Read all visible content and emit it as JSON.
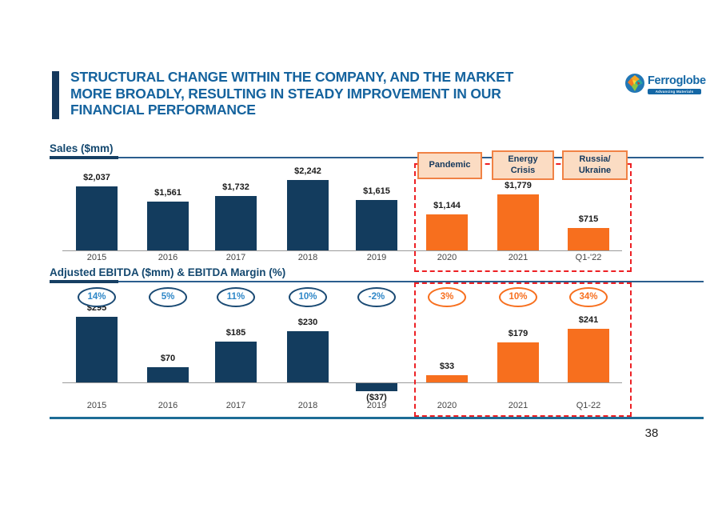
{
  "slide": {
    "title_lines": [
      "STRUCTURAL CHANGE WITHIN THE COMPANY, AND THE MARKET",
      "MORE BROADLY, RESULTING IN STEADY IMPROVEMENT IN OUR",
      "FINANCIAL PERFORMANCE"
    ],
    "page_number": "38"
  },
  "logo": {
    "name": "Ferroglobe",
    "tagline": "Advancing Materials Innovation"
  },
  "callouts": {
    "items": [
      "Pandemic",
      "Energy\nCrisis",
      "Russia/\nUkraine"
    ]
  },
  "colors": {
    "navy": "#133C5E",
    "orange": "#F76F1E",
    "oval_blue_border": "#1A4A74",
    "oval_blue_text": "#2E87C8",
    "callout_bg": "#FBDCC3",
    "callout_border": "#F08245",
    "red_dashed": "#ED2024",
    "title_blue": "#15639E",
    "footer_line": "#1D6C96"
  },
  "chart_data": [
    {
      "type": "bar",
      "title": "Sales ($mm)",
      "categories": [
        "2015",
        "2016",
        "2017",
        "2018",
        "2019",
        "2020",
        "2021",
        "Q1-'22"
      ],
      "series": [
        {
          "name": "Sales",
          "values": [
            2037,
            1561,
            1732,
            2242,
            1615,
            1144,
            1779,
            715
          ]
        }
      ],
      "value_labels": [
        "$2,037",
        "$1,561",
        "$1,732",
        "$2,242",
        "$1,615",
        "$1,144",
        "$1,779",
        "$715"
      ],
      "color_groups": [
        "navy",
        "navy",
        "navy",
        "navy",
        "navy",
        "orange",
        "orange",
        "orange"
      ],
      "annotations": [
        "Pandemic",
        "Energy Crisis",
        "Russia/Ukraine"
      ],
      "highlight_region": "2020 to Q1-'22 framed by red dashed box",
      "ylim": [
        0,
        2400
      ],
      "grid": false,
      "legend": "none"
    },
    {
      "type": "bar",
      "title": "Adjusted EBITDA ($mm) & EBITDA Margin (%)",
      "categories": [
        "2015",
        "2016",
        "2017",
        "2018",
        "2019",
        "2020",
        "2021",
        "Q1-22"
      ],
      "series": [
        {
          "name": "Adjusted EBITDA",
          "values": [
            295,
            70,
            185,
            230,
            -37,
            33,
            179,
            241
          ]
        }
      ],
      "value_labels": [
        "$295",
        "$70",
        "$185",
        "$230",
        "($37)",
        "$33",
        "$179",
        "$241"
      ],
      "margin_labels": [
        "14%",
        "5%",
        "11%",
        "10%",
        "-2%",
        "3%",
        "10%",
        "34%"
      ],
      "color_groups": [
        "navy",
        "navy",
        "navy",
        "navy",
        "navy",
        "orange",
        "orange",
        "orange"
      ],
      "highlight_region": "2020 to Q1-22 framed by red dashed box",
      "ylim": [
        -60,
        320
      ],
      "grid": false,
      "legend": "none"
    }
  ]
}
